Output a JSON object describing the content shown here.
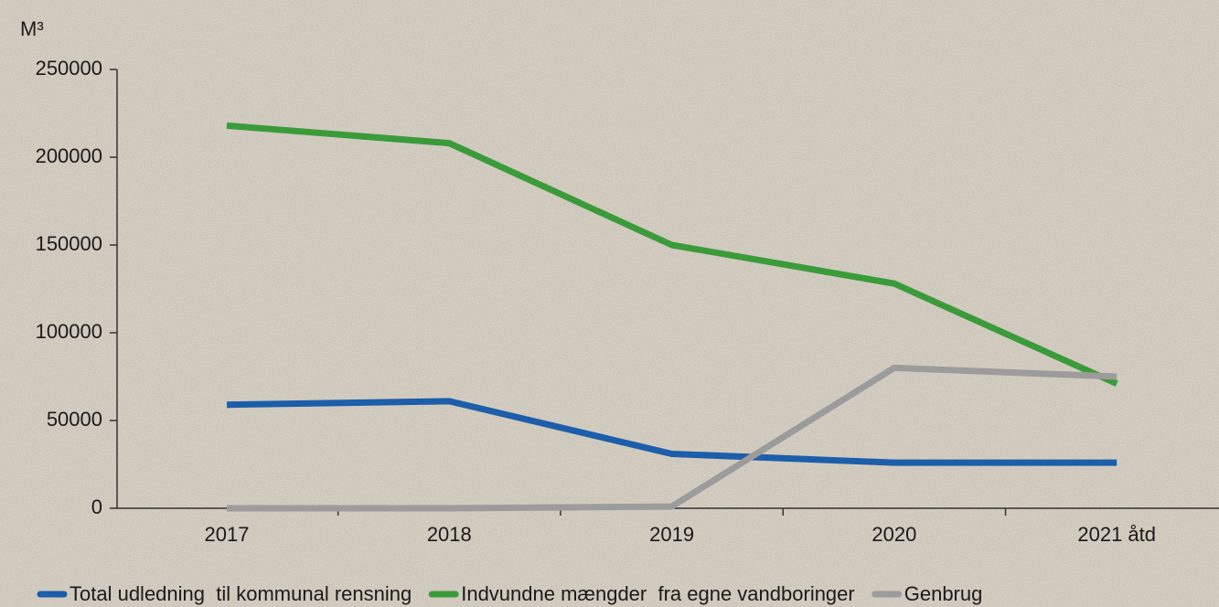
{
  "chart_data": {
    "type": "line",
    "y_axis_label": "M³",
    "categories": [
      "2017",
      "2018",
      "2019",
      "2020",
      "2021 åtd"
    ],
    "series": [
      {
        "name": "Total udledning  til kommunal rensning",
        "color": "#1c5ea9",
        "values": [
          59000,
          61000,
          31000,
          26000,
          26000
        ]
      },
      {
        "name": "Indvundne mængder  fra egne vandboringer",
        "color": "#3b9b3a",
        "values": [
          218000,
          208000,
          150000,
          128000,
          71000
        ]
      },
      {
        "name": "Genbrug",
        "color": "#9c9c9c",
        "values": [
          0,
          0,
          1000,
          80000,
          75000
        ]
      }
    ],
    "ylim": [
      0,
      250000
    ],
    "yticks": [
      0,
      50000,
      100000,
      150000,
      200000,
      250000
    ],
    "grid": false
  }
}
